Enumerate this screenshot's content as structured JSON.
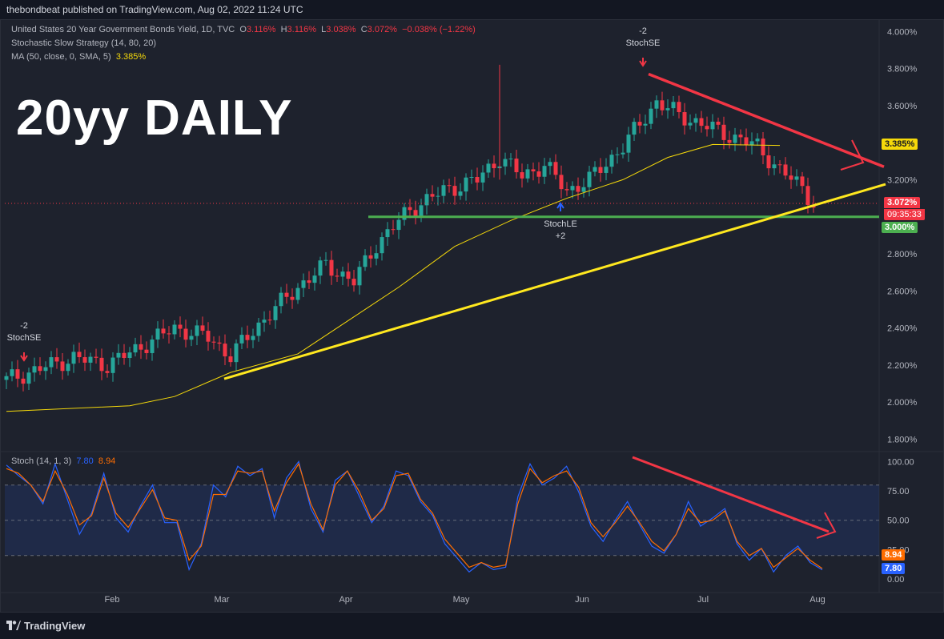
{
  "header": {
    "published": "thebondbeat published on TradingView.com, Aug 02, 2022 11:24 UTC"
  },
  "footer": {
    "brand": "TradingView",
    "brand_icon": "tradingview-logo-icon"
  },
  "legend": {
    "symbol": "United States 20 Year Government Bonds Yield, 1D, TVC",
    "o_label": "O",
    "o": "3.116%",
    "h_label": "H",
    "h": "3.116%",
    "l_label": "L",
    "l": "3.038%",
    "c_label": "C",
    "c": "3.072%",
    "chg": "−0.038% (−1.22%)",
    "strategy": "Stochastic Slow Strategy (14, 80, 20)",
    "ma": "MA (50, close, 0, SMA, 5)",
    "ma_value": "3.385%"
  },
  "overlay_title": "20yy DAILY",
  "colors": {
    "up": "#26a69a",
    "down": "#f23645",
    "ma": "#f5d90a",
    "trend_up": "#ffe81f",
    "trend_down": "#f23645",
    "support": "#4caf50",
    "stoch_k": "#2962ff",
    "stoch_d": "#ff6d00"
  },
  "signals": {
    "short_1": {
      "qty": "-2",
      "label": "StochSE"
    },
    "short_2": {
      "qty": "-2",
      "label": "StochSE"
    },
    "long_1": {
      "qty": "+2",
      "label": "StochLE"
    }
  },
  "price_tags": {
    "ma": "3.385%",
    "last": "3.072%",
    "countdown": "09:35:33",
    "support": "3.000%"
  },
  "stoch_legend": {
    "label": "Stoch (14, 1, 3)",
    "k": "7.80",
    "d": "8.94"
  },
  "stoch_tags": {
    "d": "8.94",
    "k": "7.80"
  },
  "chart_data": [
    {
      "type": "candlestick",
      "y_axis_ticks": [
        "4.000%",
        "3.800%",
        "3.600%",
        "3.400%",
        "3.200%",
        "3.000%",
        "2.800%",
        "2.600%",
        "2.400%",
        "2.200%",
        "2.000%",
        "1.800%"
      ],
      "ylim": [
        1.75,
        4.04
      ],
      "x_axis_ticks": [
        "Feb",
        "Mar",
        "Apr",
        "May",
        "Jun",
        "Jul",
        "Aug"
      ],
      "series": [
        {
          "name": "MA (50, close, 0, SMA, 5)",
          "type": "line",
          "points": [
            [
              0,
              1.95
            ],
            [
              22,
              1.98
            ],
            [
              30,
              2.03
            ],
            [
              40,
              2.16
            ],
            [
              52,
              2.26
            ],
            [
              60,
              2.42
            ],
            [
              70,
              2.62
            ],
            [
              80,
              2.84
            ],
            [
              90,
              2.98
            ],
            [
              100,
              3.1
            ],
            [
              110,
              3.2
            ],
            [
              118,
              3.32
            ],
            [
              126,
              3.39
            ],
            [
              138,
              3.385
            ]
          ]
        },
        {
          "name": "Close",
          "type": "line",
          "points": [
            [
              0,
              2.12
            ],
            [
              6,
              2.18
            ],
            [
              12,
              2.24
            ],
            [
              18,
              2.2
            ],
            [
              24,
              2.3
            ],
            [
              30,
              2.4
            ],
            [
              36,
              2.35
            ],
            [
              40,
              2.25
            ],
            [
              46,
              2.45
            ],
            [
              52,
              2.62
            ],
            [
              57,
              2.74
            ],
            [
              62,
              2.65
            ],
            [
              66,
              2.85
            ],
            [
              72,
              3.04
            ],
            [
              78,
              3.14
            ],
            [
              84,
              3.2
            ],
            [
              88,
              3.32
            ],
            [
              92,
              3.22
            ],
            [
              96,
              3.28
            ],
            [
              100,
              3.14
            ],
            [
              104,
              3.2
            ],
            [
              110,
              3.38
            ],
            [
              116,
              3.62
            ],
            [
              120,
              3.55
            ],
            [
              124,
              3.5
            ],
            [
              128,
              3.45
            ],
            [
              134,
              3.38
            ],
            [
              138,
              3.25
            ],
            [
              142,
              3.16
            ],
            [
              144,
              3.072
            ]
          ]
        }
      ],
      "trendlines": [
        {
          "name": "rising trendline",
          "from": [
            40,
            2.16
          ],
          "to": [
            158,
            3.21
          ]
        },
        {
          "name": "falling trendline",
          "from": [
            116,
            3.77
          ],
          "to": [
            158,
            3.27
          ]
        }
      ],
      "support_level": 3.0,
      "last_close": 3.072
    },
    {
      "type": "line",
      "title": "Stoch (14, 1, 3)",
      "y_axis_ticks": [
        "100.00",
        "75.00",
        "50.00",
        "25.00",
        "0.00"
      ],
      "ylim": [
        -2,
        103
      ],
      "bands": [
        20,
        50,
        80
      ],
      "series": [
        {
          "name": "K",
          "values": [
            97,
            88,
            80,
            64,
            98,
            68,
            38,
            56,
            90,
            52,
            40,
            62,
            80,
            48,
            48,
            8,
            30,
            80,
            70,
            96,
            88,
            94,
            52,
            86,
            100,
            60,
            40,
            84,
            92,
            70,
            48,
            62,
            92,
            88,
            66,
            54,
            30,
            18,
            6,
            14,
            8,
            10,
            70,
            98,
            80,
            86,
            96,
            74,
            45,
            32,
            50,
            66,
            46,
            28,
            22,
            38,
            66,
            45,
            52,
            60,
            30,
            16,
            26,
            6,
            20,
            28,
            14,
            7.8
          ]
        },
        {
          "name": "D",
          "values": [
            94,
            90,
            80,
            66,
            92,
            72,
            46,
            54,
            86,
            56,
            44,
            60,
            76,
            52,
            50,
            16,
            28,
            72,
            72,
            92,
            90,
            92,
            58,
            82,
            98,
            64,
            42,
            80,
            92,
            74,
            50,
            60,
            88,
            90,
            68,
            56,
            34,
            22,
            10,
            14,
            10,
            12,
            64,
            94,
            82,
            88,
            92,
            78,
            48,
            36,
            48,
            62,
            48,
            32,
            24,
            38,
            60,
            48,
            50,
            58,
            32,
            20,
            26,
            10,
            18,
            26,
            16,
            8.94
          ]
        }
      ]
    }
  ]
}
